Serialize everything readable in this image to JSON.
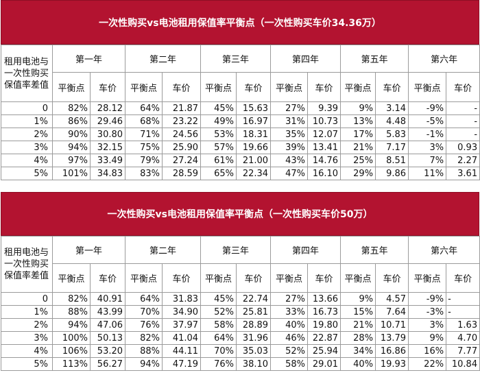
{
  "tables": [
    {
      "title": "一次性购买vs电池租用保值率平衡点（一次性购买车价34.36万）",
      "row_header": "租用电池与一次性购买保值率差值",
      "years": [
        "第一年",
        "第二年",
        "第三年",
        "第四年",
        "第五年",
        "第六年"
      ],
      "sub_headers": [
        "平衡点",
        "车价"
      ],
      "rows": [
        {
          "label": "0",
          "cells": [
            "82%",
            "28.12",
            "64%",
            "21.87",
            "45%",
            "15.63",
            "27%",
            "9.39",
            "9%",
            "3.14",
            "-9%",
            "-"
          ]
        },
        {
          "label": "1%",
          "cells": [
            "86%",
            "29.46",
            "68%",
            "23.22",
            "49%",
            "16.97",
            "31%",
            "10.73",
            "13%",
            "4.48",
            "-5%",
            "-"
          ]
        },
        {
          "label": "2%",
          "cells": [
            "90%",
            "30.80",
            "71%",
            "24.56",
            "53%",
            "18.31",
            "35%",
            "12.07",
            "17%",
            "5.83",
            "-1%",
            "-"
          ]
        },
        {
          "label": "3%",
          "cells": [
            "94%",
            "32.15",
            "75%",
            "25.90",
            "57%",
            "19.66",
            "39%",
            "13.41",
            "21%",
            "7.17",
            "3%",
            "0.93"
          ]
        },
        {
          "label": "4%",
          "cells": [
            "97%",
            "33.49",
            "79%",
            "27.24",
            "61%",
            "21.00",
            "43%",
            "14.76",
            "25%",
            "8.51",
            "7%",
            "2.27"
          ]
        },
        {
          "label": "5%",
          "cells": [
            "101%",
            "34.83",
            "83%",
            "28.59",
            "65%",
            "22.34",
            "47%",
            "16.10",
            "29%",
            "9.86",
            "11%",
            "3.61"
          ]
        }
      ]
    },
    {
      "title": "一次性购买vs电池租用保值率平衡点（一次性购买车价50万）",
      "row_header": "租用电池与一次性购买保值率差值",
      "years": [
        "第一年",
        "第二年",
        "第三年",
        "第四年",
        "第五年",
        "第六年"
      ],
      "sub_headers": [
        "平衡点",
        "车价"
      ],
      "rows": [
        {
          "label": "0",
          "cells": [
            "82%",
            "40.91",
            "64%",
            "31.83",
            "45%",
            "22.74",
            "27%",
            "13.66",
            "9%",
            "4.57",
            "-9%",
            "-"
          ]
        },
        {
          "label": "1%",
          "cells": [
            "88%",
            "43.99",
            "70%",
            "34.90",
            "52%",
            "25.81",
            "33%",
            "16.73",
            "15%",
            "7.64",
            "-3%",
            "-"
          ]
        },
        {
          "label": "2%",
          "cells": [
            "94%",
            "47.06",
            "76%",
            "37.97",
            "58%",
            "28.89",
            "40%",
            "19.80",
            "21%",
            "10.71",
            "3%",
            "1.63"
          ]
        },
        {
          "label": "3%",
          "cells": [
            "100%",
            "50.13",
            "82%",
            "41.04",
            "64%",
            "31.96",
            "46%",
            "22.87",
            "28%",
            "13.79",
            "9%",
            "4.70"
          ]
        },
        {
          "label": "4%",
          "cells": [
            "106%",
            "53.20",
            "88%",
            "44.11",
            "70%",
            "35.03",
            "52%",
            "25.94",
            "34%",
            "16.86",
            "16%",
            "7.77"
          ]
        },
        {
          "label": "5%",
          "cells": [
            "113%",
            "56.27",
            "94%",
            "47.19",
            "76%",
            "38.10",
            "58%",
            "29.01",
            "40%",
            "19.93",
            "22%",
            "10.84"
          ]
        }
      ]
    }
  ]
}
